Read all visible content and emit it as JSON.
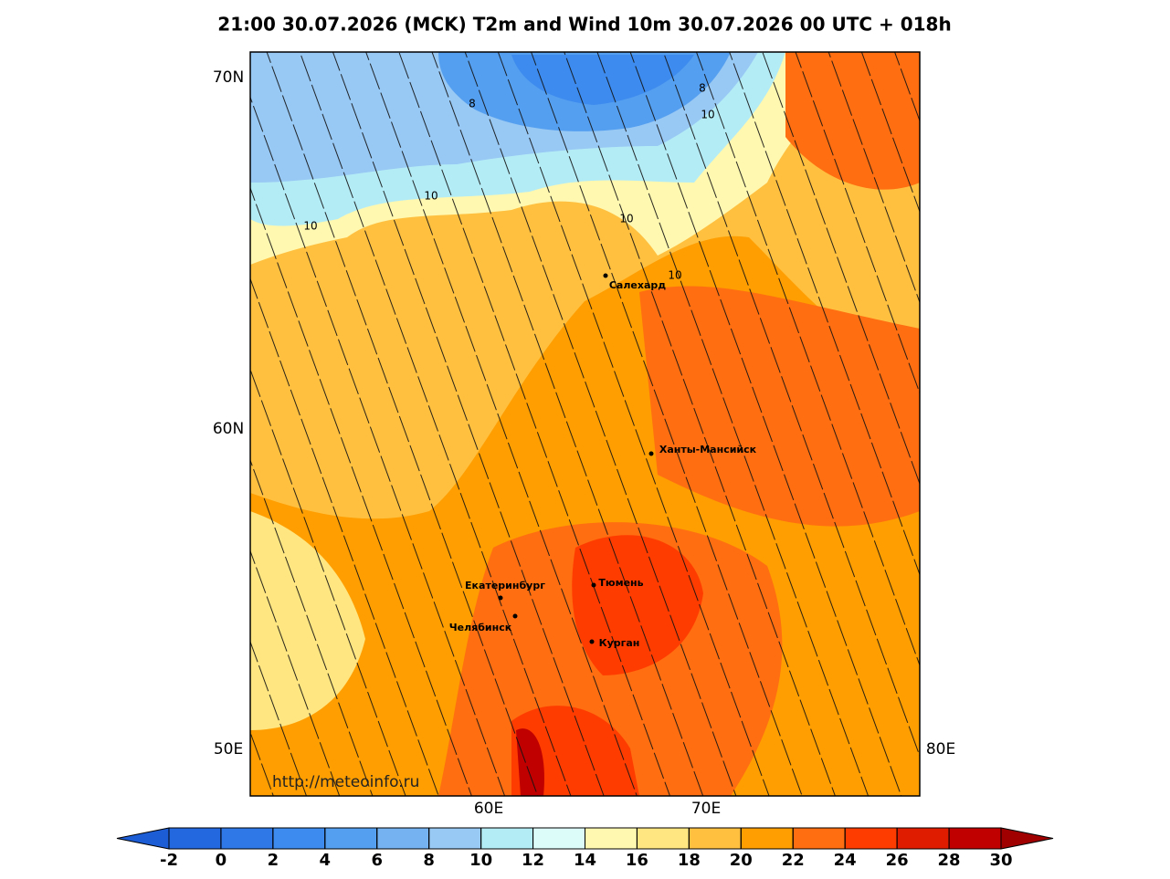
{
  "title": "21:00 30.07.2026 (MCK) T2m and Wind 10m 30.07.2026 00 UTC + 018h",
  "map": {
    "lat_labels": [
      "70N",
      "60N"
    ],
    "lon_labels_side": [
      "50E",
      "80E"
    ],
    "lon_labels_bottom": [
      "60E",
      "70E"
    ],
    "cities": [
      "Салехард",
      "Ханты-Мансийск",
      "Екатеринбург",
      "Челябинск",
      "Тюмень",
      "Курган"
    ],
    "contour_labels": [
      8,
      8,
      10,
      10,
      10,
      10,
      10
    ],
    "credit": "http://meteoinfo.ru"
  },
  "colorbar": {
    "ticks": [
      -2,
      0,
      2,
      4,
      6,
      8,
      10,
      12,
      14,
      16,
      18,
      20,
      22,
      24,
      26,
      28,
      30
    ],
    "under_color": "#1c5cd4",
    "colors": [
      "#2468e0",
      "#2f78e8",
      "#3d8bee",
      "#559ff0",
      "#74b2f2",
      "#98c8f4",
      "#b4ecf6",
      "#dcfcfa",
      "#fff8b0",
      "#ffe680",
      "#ffc040",
      "#ff9e00",
      "#ff6e10",
      "#ff3c00",
      "#e01c00",
      "#c00000"
    ],
    "over_color": "#a00000"
  }
}
